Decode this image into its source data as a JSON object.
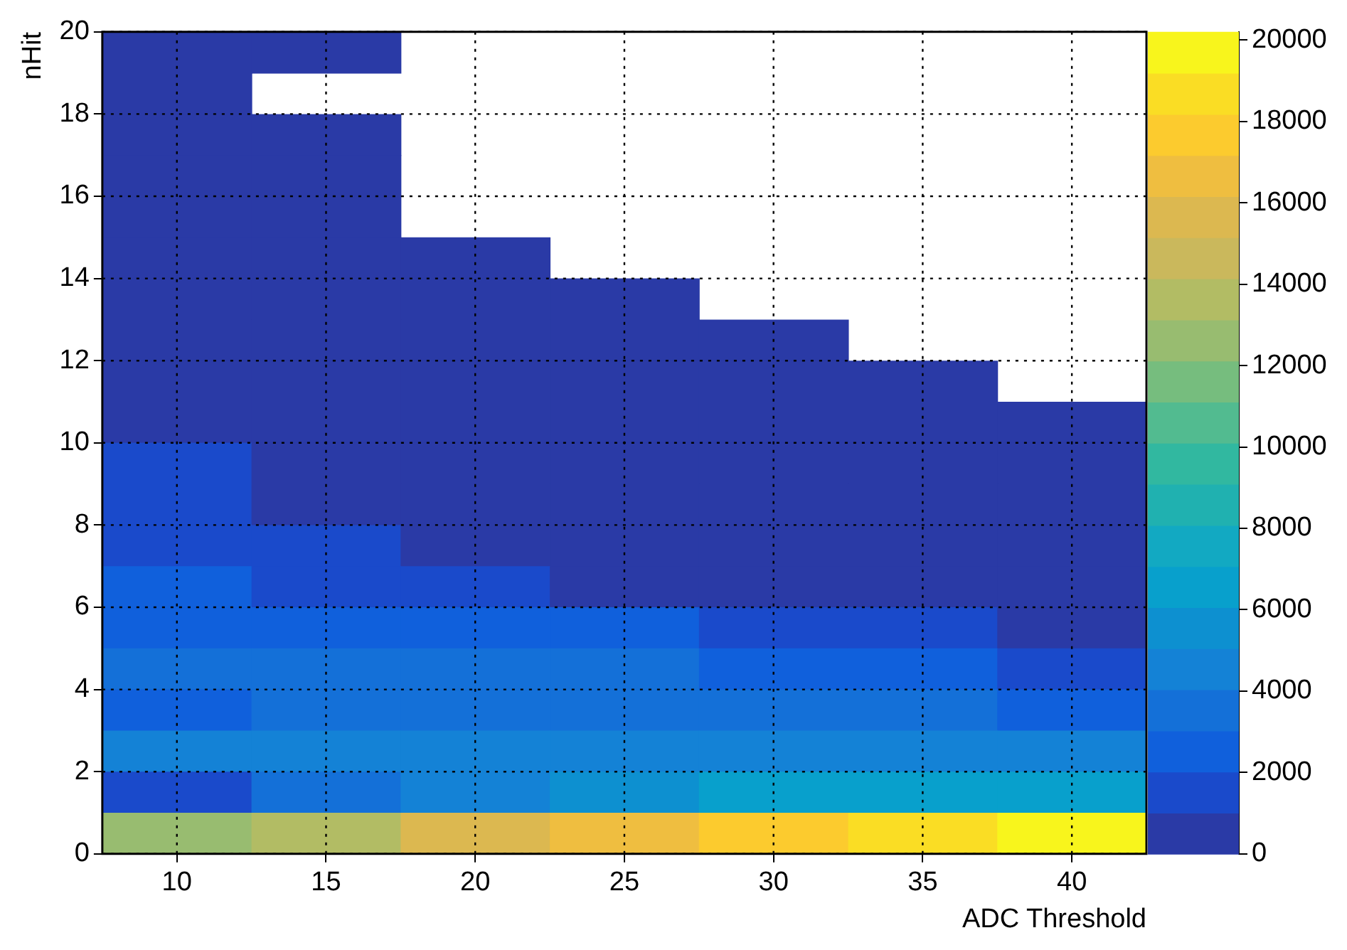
{
  "chart_data": {
    "type": "heatmap",
    "xlabel": "ADC Threshold",
    "ylabel": "nHit",
    "x": [
      10,
      15,
      20,
      25,
      30,
      35,
      40
    ],
    "xlim": [
      7.5,
      42.5
    ],
    "xticks": [
      10,
      15,
      20,
      25,
      30,
      35,
      40
    ],
    "ylim": [
      0,
      20
    ],
    "yticks": [
      0,
      2,
      4,
      6,
      8,
      10,
      12,
      14,
      16,
      18,
      20
    ],
    "grid": true,
    "clim": [
      0,
      20200
    ],
    "cticks": [
      0,
      2000,
      4000,
      6000,
      8000,
      10000,
      12000,
      14000,
      16000,
      18000,
      20000
    ],
    "cells": [
      [
        300,
        300,
        null,
        null,
        null,
        null,
        null
      ],
      [
        300,
        null,
        null,
        null,
        null,
        null,
        null
      ],
      [
        300,
        300,
        null,
        null,
        null,
        null,
        null
      ],
      [
        300,
        300,
        null,
        null,
        null,
        null,
        null
      ],
      [
        300,
        300,
        null,
        null,
        null,
        null,
        null
      ],
      [
        300,
        300,
        300,
        null,
        null,
        null,
        null
      ],
      [
        300,
        300,
        300,
        300,
        null,
        null,
        null
      ],
      [
        300,
        300,
        300,
        300,
        300,
        null,
        null
      ],
      [
        300,
        300,
        300,
        300,
        300,
        300,
        null
      ],
      [
        300,
        300,
        300,
        300,
        300,
        300,
        300
      ],
      [
        1500,
        500,
        500,
        500,
        500,
        500,
        500
      ],
      [
        1500,
        500,
        500,
        500,
        500,
        500,
        500
      ],
      [
        1500,
        1500,
        500,
        500,
        500,
        500,
        500
      ],
      [
        2500,
        1500,
        1500,
        500,
        500,
        500,
        500
      ],
      [
        2500,
        2500,
        2500,
        2500,
        1500,
        1500,
        500
      ],
      [
        3500,
        3500,
        3500,
        3500,
        2500,
        2500,
        1500
      ],
      [
        2500,
        3500,
        3500,
        3500,
        3500,
        3500,
        2200
      ],
      [
        4500,
        4500,
        4500,
        4500,
        4500,
        4500,
        4500
      ],
      [
        1500,
        3500,
        4500,
        5500,
        6500,
        6500,
        6500
      ],
      [
        12500,
        14000,
        15500,
        16500,
        18000,
        19000,
        20000
      ]
    ]
  }
}
